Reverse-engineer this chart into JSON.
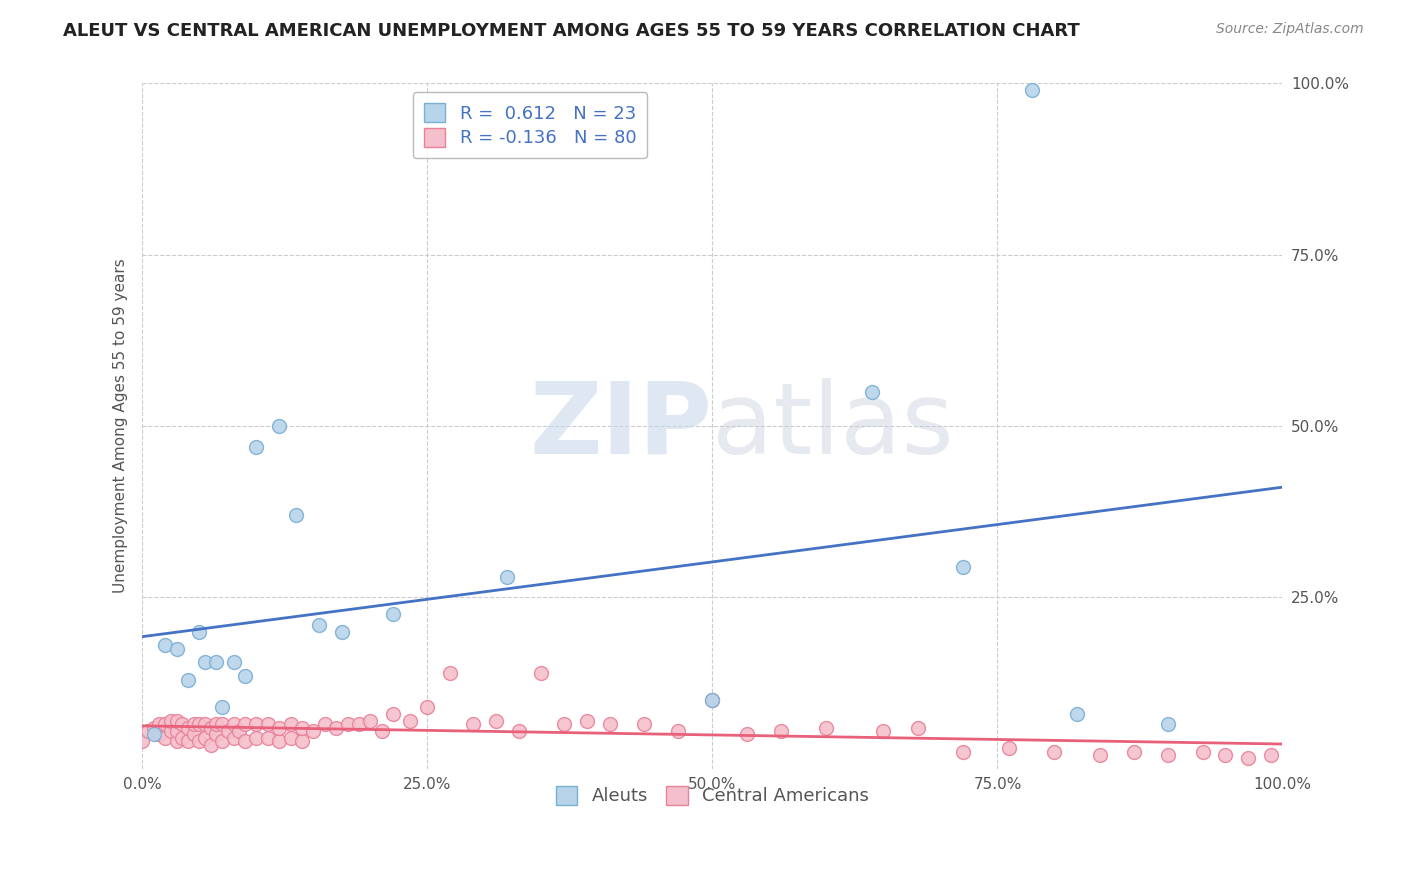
{
  "title": "ALEUT VS CENTRAL AMERICAN UNEMPLOYMENT AMONG AGES 55 TO 59 YEARS CORRELATION CHART",
  "source": "Source: ZipAtlas.com",
  "ylabel": "Unemployment Among Ages 55 to 59 years",
  "xlim": [
    0.0,
    1.0
  ],
  "ylim": [
    0.0,
    1.0
  ],
  "xticks": [
    0.0,
    0.25,
    0.5,
    0.75,
    1.0
  ],
  "yticks": [
    0.25,
    0.5,
    0.75,
    1.0
  ],
  "xticklabels": [
    "0.0%",
    "25.0%",
    "50.0%",
    "75.0%",
    "100.0%"
  ],
  "yticklabels": [
    "25.0%",
    "50.0%",
    "75.0%",
    "100.0%"
  ],
  "aleut_color": "#b8d4ea",
  "aleut_edge_color": "#7aafd4",
  "central_color": "#f5c0cb",
  "central_edge_color": "#e8829a",
  "aleut_line_color": "#4472c4",
  "central_line_color": "#e8607a",
  "aleut_R": 0.612,
  "aleut_N": 23,
  "central_R": -0.136,
  "central_N": 80,
  "background_color": "#ffffff",
  "grid_color": "#cccccc",
  "watermark_zip": "ZIP",
  "watermark_atlas": "atlas",
  "aleut_x": [
    0.01,
    0.02,
    0.03,
    0.04,
    0.05,
    0.055,
    0.065,
    0.07,
    0.08,
    0.09,
    0.1,
    0.12,
    0.135,
    0.155,
    0.175,
    0.22,
    0.32,
    0.5,
    0.64,
    0.72,
    0.78,
    0.82,
    0.9
  ],
  "aleut_y": [
    0.05,
    0.18,
    0.175,
    0.13,
    0.2,
    0.155,
    0.155,
    0.09,
    0.155,
    0.135,
    0.47,
    0.5,
    0.37,
    0.21,
    0.2,
    0.225,
    0.28,
    0.1,
    0.55,
    0.295,
    0.99,
    0.08,
    0.065
  ],
  "central_x": [
    0.0,
    0.005,
    0.01,
    0.015,
    0.015,
    0.02,
    0.02,
    0.025,
    0.025,
    0.03,
    0.03,
    0.03,
    0.035,
    0.035,
    0.04,
    0.04,
    0.045,
    0.045,
    0.05,
    0.05,
    0.055,
    0.055,
    0.06,
    0.06,
    0.065,
    0.065,
    0.07,
    0.07,
    0.075,
    0.08,
    0.08,
    0.085,
    0.09,
    0.09,
    0.1,
    0.1,
    0.11,
    0.11,
    0.12,
    0.12,
    0.13,
    0.13,
    0.14,
    0.14,
    0.15,
    0.16,
    0.17,
    0.18,
    0.19,
    0.2,
    0.21,
    0.22,
    0.235,
    0.25,
    0.27,
    0.29,
    0.31,
    0.33,
    0.35,
    0.37,
    0.39,
    0.41,
    0.44,
    0.47,
    0.5,
    0.53,
    0.56,
    0.6,
    0.65,
    0.68,
    0.72,
    0.76,
    0.8,
    0.84,
    0.87,
    0.9,
    0.93,
    0.95,
    0.97,
    0.99
  ],
  "central_y": [
    0.04,
    0.055,
    0.06,
    0.05,
    0.065,
    0.045,
    0.065,
    0.055,
    0.07,
    0.04,
    0.055,
    0.07,
    0.045,
    0.065,
    0.04,
    0.06,
    0.05,
    0.065,
    0.04,
    0.065,
    0.045,
    0.065,
    0.035,
    0.06,
    0.05,
    0.065,
    0.04,
    0.065,
    0.055,
    0.045,
    0.065,
    0.055,
    0.04,
    0.065,
    0.045,
    0.065,
    0.045,
    0.065,
    0.04,
    0.06,
    0.045,
    0.065,
    0.04,
    0.06,
    0.055,
    0.065,
    0.06,
    0.065,
    0.065,
    0.07,
    0.055,
    0.08,
    0.07,
    0.09,
    0.14,
    0.065,
    0.07,
    0.055,
    0.14,
    0.065,
    0.07,
    0.065,
    0.065,
    0.055,
    0.1,
    0.05,
    0.055,
    0.06,
    0.055,
    0.06,
    0.025,
    0.03,
    0.025,
    0.02,
    0.025,
    0.02,
    0.025,
    0.02,
    0.015,
    0.02
  ],
  "title_fontsize": 13,
  "axis_fontsize": 11,
  "tick_fontsize": 11,
  "legend_fontsize": 13,
  "source_fontsize": 10,
  "marker_size": 100,
  "marker_linewidth": 1.0
}
